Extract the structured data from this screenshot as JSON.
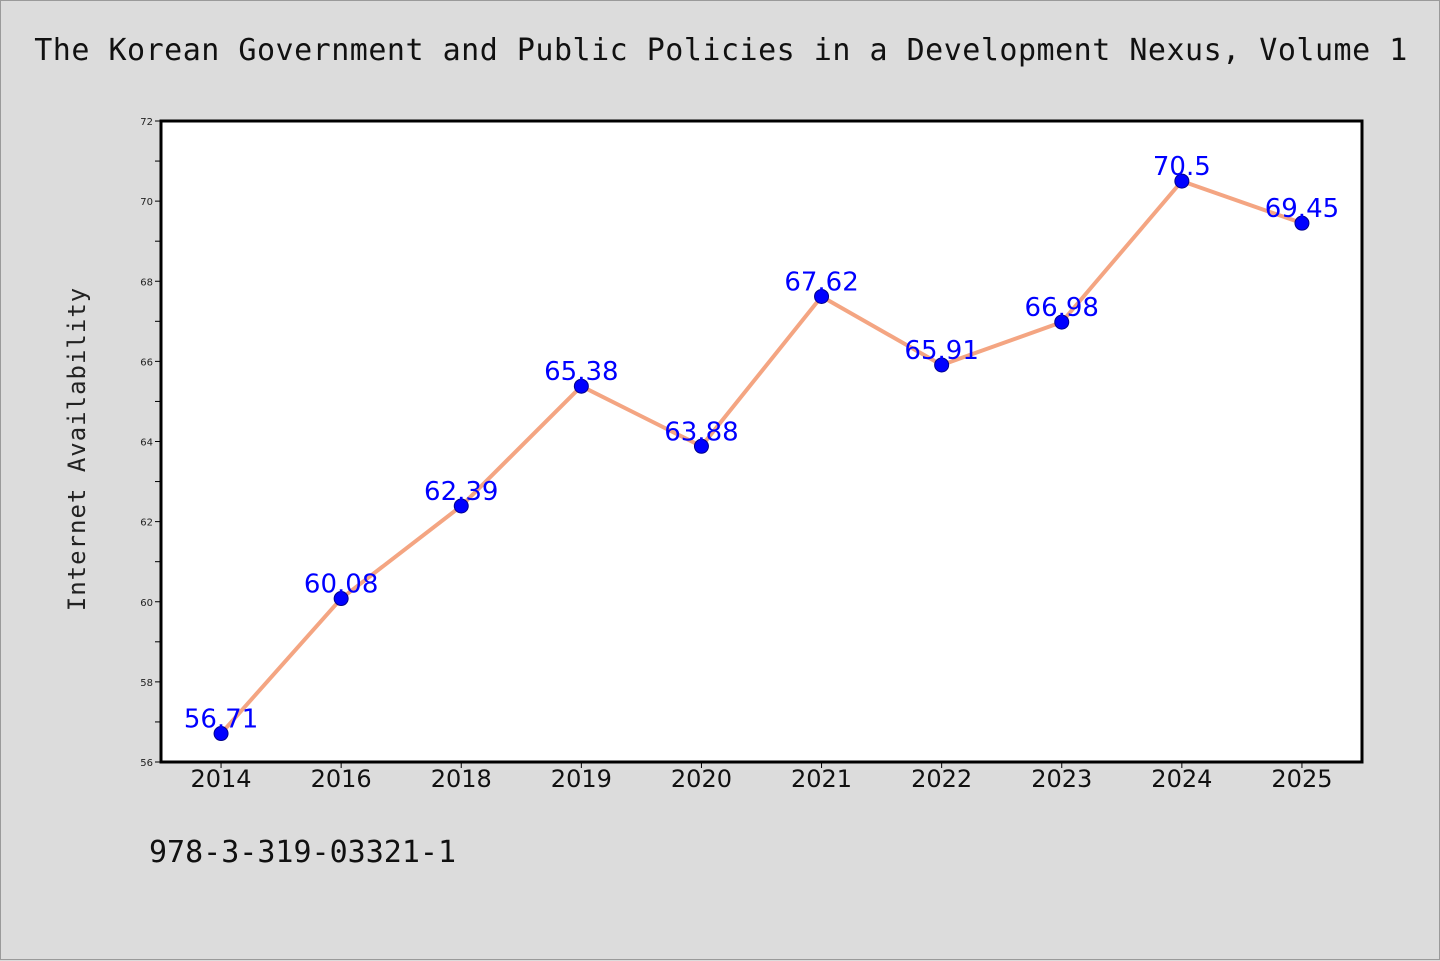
{
  "title": "The Korean Government and Public Policies in a Development Nexus, Volume 1",
  "isbn": "978-3-319-03321-1",
  "colors": {
    "line": "#f4a582",
    "marker": "#0000ff",
    "label": "#0000ff",
    "plot_bg": "#ffffff",
    "page_bg": "#dcdcdc"
  },
  "chart_data": {
    "type": "line",
    "title": "The Korean Government and Public Policies in a Development Nexus, Volume 1",
    "xlabel": "",
    "ylabel": "Internet Availability",
    "categories": [
      "2014",
      "2016",
      "2018",
      "2019",
      "2020",
      "2021",
      "2022",
      "2023",
      "2024",
      "2025"
    ],
    "series": [
      {
        "values": [
          56.71,
          60.08,
          62.39,
          65.38,
          63.88,
          67.62,
          65.91,
          66.98,
          70.5,
          69.45
        ],
        "labels": [
          "56.71",
          "60.08",
          "62.39",
          "65.38",
          "63.88",
          "67.62",
          "65.91",
          "66.98",
          "70.5",
          "69.45"
        ]
      }
    ],
    "ylim": [
      56,
      72
    ],
    "yticks": [
      "56",
      "58",
      "60",
      "62",
      "64",
      "66",
      "68",
      "70",
      "72"
    ],
    "grid": false,
    "legend": "none"
  }
}
